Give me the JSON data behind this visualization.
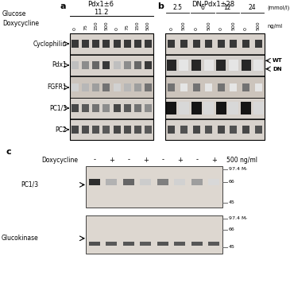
{
  "fig_width": 3.65,
  "fig_height": 3.66,
  "dpi": 100,
  "bg_color": "#ffffff",
  "glucose_label": "Glucose",
  "doxycycline_label": "Doxycycline",
  "panel_a_title": "Pdx1±6",
  "panel_a_glucose": "11.2",
  "panel_a_doxy_vals": [
    "0",
    "75",
    "150",
    "500",
    "0",
    "75",
    "150",
    "500"
  ],
  "panel_b_title": "DN-Pdx1±28",
  "panel_b_glucose_vals": [
    "2.5",
    "6",
    "12",
    "24"
  ],
  "panel_b_unit": "(mmol/l)",
  "panel_b_doxy_vals": [
    "0",
    "500",
    "0",
    "500",
    "0",
    "500",
    "0",
    "500"
  ],
  "panel_b_unit2": "ng/ml",
  "row_labels": [
    "Cyclophilin",
    "Pdx1",
    "FGFR1",
    "PC1/3",
    "PC2"
  ],
  "panel_c_doxy_label": "Doxycycline",
  "panel_c_doxy_vals": [
    "-",
    "+",
    "-",
    "+",
    "-",
    "+",
    "-",
    "+"
  ],
  "panel_c_doxy_unit": "500 ng/ml",
  "panel_c_row1_label": "PC1/3",
  "panel_c_row2_label": "Glucokinase",
  "mw_marks": [
    "97.4 Mᵣ",
    "66",
    "45"
  ]
}
